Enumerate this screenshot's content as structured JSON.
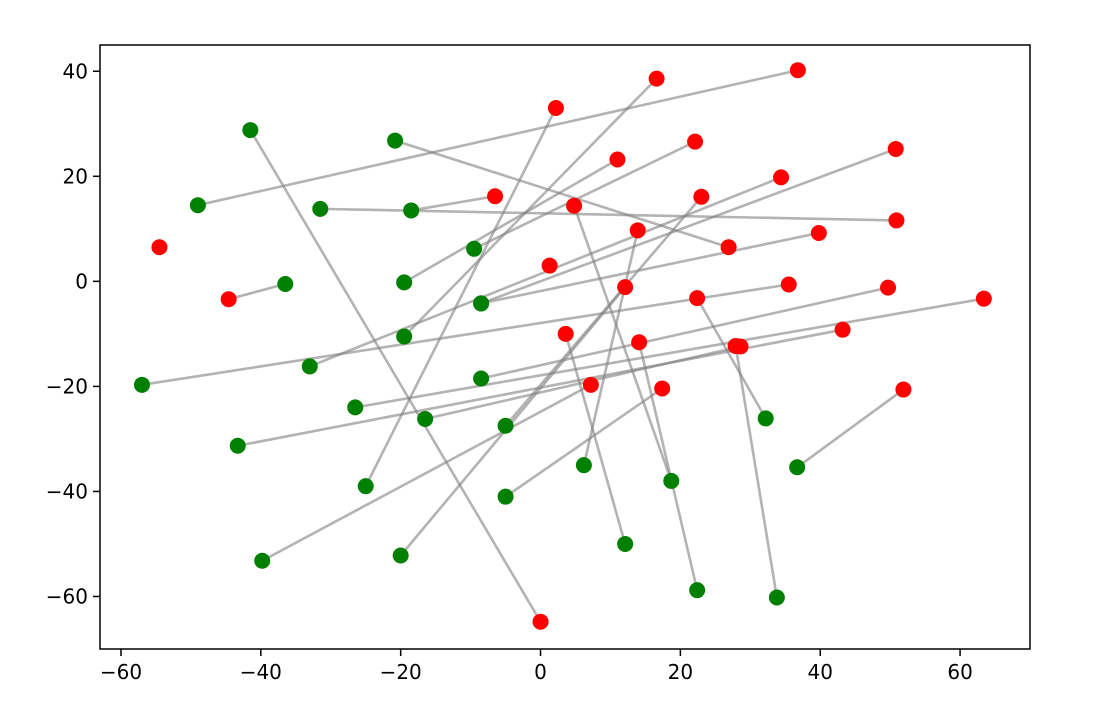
{
  "chart_data": {
    "type": "scatter",
    "title": "",
    "xlabel": "",
    "ylabel": "",
    "xlim": [
      -63,
      70
    ],
    "ylim": [
      -70,
      45
    ],
    "x_ticks": [
      -60,
      -40,
      -20,
      0,
      20,
      40,
      60
    ],
    "y_ticks": [
      -60,
      -40,
      -20,
      0,
      20,
      40
    ],
    "x_tick_labels": [
      "−60",
      "−40",
      "−20",
      "0",
      "20",
      "40",
      "60"
    ],
    "y_tick_labels": [
      "−60",
      "−40",
      "−20",
      "0",
      "20",
      "40"
    ],
    "grid": false,
    "legend": "none",
    "colors": {
      "source": "#008000",
      "target": "#ff0000",
      "line": "#808080"
    },
    "pairs": [
      {
        "green": [
          -49.0,
          14.5
        ],
        "red": [
          36.8,
          40.2
        ]
      },
      {
        "green": [
          -41.5,
          28.8
        ],
        "red": [
          0.0,
          -64.8
        ]
      },
      {
        "green": [
          -20.8,
          26.8
        ],
        "red": [
          26.9,
          6.5
        ]
      },
      {
        "green": [
          -31.5,
          13.8
        ],
        "red": [
          50.9,
          11.6
        ]
      },
      {
        "green": [
          -18.5,
          13.5
        ],
        "red": [
          -6.5,
          16.2
        ]
      },
      {
        "green": [
          -9.5,
          6.2
        ],
        "red": [
          22.1,
          26.6
        ]
      },
      {
        "green": [
          -36.5,
          -0.5
        ],
        "red": [
          -44.6,
          -3.4
        ]
      },
      {
        "green": [
          -19.5,
          -0.2
        ],
        "red": [
          11.0,
          23.2
        ]
      },
      {
        "green": [
          -8.5,
          -4.2
        ],
        "red": [
          39.8,
          9.2
        ]
      },
      {
        "green": [
          -33.0,
          -16.2
        ],
        "red": [
          34.4,
          19.8
        ]
      },
      {
        "green": [
          -19.5,
          -10.5
        ],
        "red": [
          16.6,
          38.6
        ]
      },
      {
        "green": [
          -57.0,
          -19.7
        ],
        "red": [
          35.5,
          -0.6
        ]
      },
      {
        "green": [
          -26.5,
          -24.0
        ],
        "red": [
          63.4,
          -3.3
        ]
      },
      {
        "green": [
          -8.5,
          -18.5
        ],
        "red": [
          49.7,
          -1.2
        ]
      },
      {
        "green": [
          -43.3,
          -31.3
        ],
        "red": [
          43.2,
          -9.2
        ]
      },
      {
        "green": [
          -16.5,
          -26.2
        ],
        "red": [
          28.6,
          -12.4
        ]
      },
      {
        "green": [
          -5.0,
          -27.5
        ],
        "red": [
          23.0,
          16.1
        ]
      },
      {
        "green": [
          -25.0,
          -39.0
        ],
        "red": [
          2.2,
          33.0
        ]
      },
      {
        "green": [
          -39.8,
          -53.2
        ],
        "red": [
          7.2,
          -19.7
        ]
      },
      {
        "green": [
          -20.0,
          -52.2
        ],
        "red": [
          12.1,
          -1.1
        ]
      },
      {
        "green": [
          -5.0,
          -41.0
        ],
        "red": [
          17.4,
          -20.4
        ]
      },
      {
        "green": [
          6.2,
          -35.0
        ],
        "red": [
          13.9,
          9.7
        ]
      },
      {
        "green": [
          12.1,
          -50.0
        ],
        "red": [
          3.6,
          -10.0
        ]
      },
      {
        "green": [
          18.7,
          -38.0
        ],
        "red": [
          4.8,
          14.4
        ]
      },
      {
        "green": [
          22.4,
          -58.8
        ],
        "red": [
          14.1,
          -11.6
        ]
      },
      {
        "green": [
          33.8,
          -60.2
        ],
        "red": [
          27.9,
          -12.3
        ]
      },
      {
        "green": [
          32.2,
          -26.1
        ],
        "red": [
          22.4,
          -3.2
        ]
      },
      {
        "green": [
          36.7,
          -35.4
        ],
        "red": [
          51.9,
          -20.6
        ]
      },
      {
        "green": [
          -54.5,
          6.5
        ],
        "red": [
          -54.5,
          6.5
        ]
      },
      {
        "green": [
          -8.5,
          -4.2
        ],
        "red": [
          50.8,
          25.2
        ]
      },
      {
        "green": [
          1.3,
          3.0
        ],
        "red": [
          1.3,
          3.0
        ]
      }
    ]
  }
}
